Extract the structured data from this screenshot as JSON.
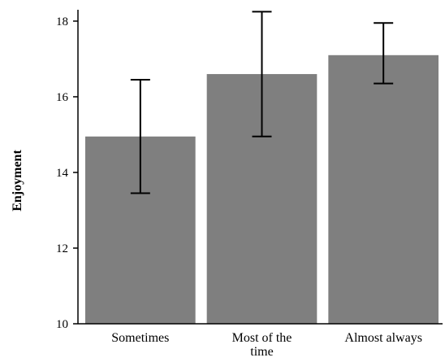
{
  "chart_data": {
    "type": "bar",
    "ylabel": "Enjoyment",
    "xlabel": "",
    "categories": [
      "Sometimes",
      "Most of the time",
      "Almost always"
    ],
    "category_label_lines": [
      [
        "Sometimes"
      ],
      [
        "Most of the",
        "time"
      ],
      [
        "Almost always"
      ]
    ],
    "values": [
      14.95,
      16.6,
      17.1
    ],
    "error_low": [
      13.45,
      14.95,
      16.35
    ],
    "error_high": [
      16.45,
      18.25,
      17.95
    ],
    "ylim": [
      10,
      18.3
    ],
    "yticks": [
      10,
      12,
      14,
      16,
      18
    ],
    "grid": false,
    "bar_color": "#7f7f7f",
    "error_color": "#000000"
  }
}
